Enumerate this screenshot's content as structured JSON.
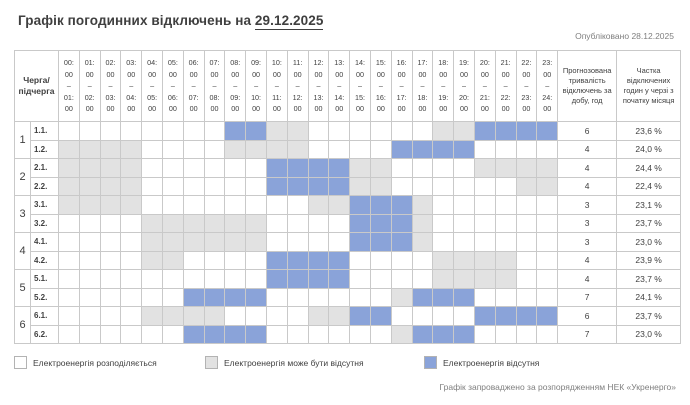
{
  "page": {
    "title_prefix": "Графік погодинних відключень на ",
    "title_date": "29.12.2025",
    "published": "Опубліковано 28.12.2025",
    "footer_note": "Графік запроваджено за розпорядженням НЕК «Укренерго»"
  },
  "colors": {
    "distributed": "#ffffff",
    "maybe_off": "#e2e2e2",
    "off": "#8aa3d9",
    "grid_line": "#c9c9c9",
    "outer_border": "#9e9e9e",
    "text_dark": "#404040",
    "text_muted": "#7f7f7f"
  },
  "table": {
    "corner_header": "Черга/\nпідчерга",
    "range_separator": "–",
    "hour_ticks": [
      "00:00",
      "01:00",
      "02:00",
      "03:00",
      "04:00",
      "05:00",
      "06:00",
      "07:00",
      "08:00",
      "09:00",
      "10:00",
      "11:00",
      "12:00",
      "13:00",
      "14:00",
      "15:00",
      "16:00",
      "17:00",
      "18:00",
      "19:00",
      "20:00",
      "21:00",
      "22:00",
      "23:00",
      "24:00"
    ],
    "duration_header": "Прогнозована тривалість відключень за добу, год",
    "share_header": "Частка відключених годин у черзі з початку місяця",
    "state_keys": {
      "W": "distributed",
      "G": "maybe_off",
      "B": "off"
    },
    "groups": [
      {
        "number": "1",
        "rows": [
          {
            "label": "1.1.",
            "pattern": "WWWWWWWWBBGGWWWWWWGGBBBB",
            "duration": "6",
            "share": "23,6 %"
          },
          {
            "label": "1.2.",
            "pattern": "GGGGWWWWGGGGWWWWBBBBWWWW",
            "duration": "4",
            "share": "24,0 %"
          }
        ]
      },
      {
        "number": "2",
        "rows": [
          {
            "label": "2.1.",
            "pattern": "GGGGWWWWWWBBBBGGWWWWGGGG",
            "duration": "4",
            "share": "24,4 %"
          },
          {
            "label": "2.2.",
            "pattern": "GGGGWWWWWWBBBBGGWWWWWWGG",
            "duration": "4",
            "share": "22,4 %"
          }
        ]
      },
      {
        "number": "3",
        "rows": [
          {
            "label": "3.1.",
            "pattern": "GGGGWWWWWWWWGGBBBGWWWWWW",
            "duration": "3",
            "share": "23,1 %"
          },
          {
            "label": "3.2.",
            "pattern": "WWWWGGGGGGWWWWBBBGWWWWWW",
            "duration": "3",
            "share": "23,7 %"
          }
        ]
      },
      {
        "number": "4",
        "rows": [
          {
            "label": "4.1.",
            "pattern": "WWWWGGGGGGWWWWBBBGWWWWWW",
            "duration": "3",
            "share": "23,0 %"
          },
          {
            "label": "4.2.",
            "pattern": "WWWWGGWWWWBBBBWWWWGGGGWW",
            "duration": "4",
            "share": "23,9 %"
          }
        ]
      },
      {
        "number": "5",
        "rows": [
          {
            "label": "5.1.",
            "pattern": "WWWWWWWWWWBBBBWWWWGGGGWW",
            "duration": "4",
            "share": "23,7 %"
          },
          {
            "label": "5.2.",
            "pattern": "WWWWWWBBBBWWWWWWGBBBWWWW",
            "duration": "7",
            "share": "24,1 %"
          }
        ]
      },
      {
        "number": "6",
        "rows": [
          {
            "label": "6.1.",
            "pattern": "WWWWGGGGWWWWGGBBWWWWBBBB",
            "duration": "6",
            "share": "23,7 %"
          },
          {
            "label": "6.2.",
            "pattern": "WWWWWWBBBBWWWWWWGBBBWWWW",
            "duration": "7",
            "share": "23,0 %"
          }
        ]
      }
    ]
  },
  "legend": [
    {
      "state": "W",
      "label": "Електроенергія розподіляється"
    },
    {
      "state": "G",
      "label": "Електроенергія може бути відсутня"
    },
    {
      "state": "B",
      "label": "Електроенергія відсутня"
    }
  ],
  "chart_data": {
    "type": "heatmap",
    "title": "Графік погодинних відключень на 29.12.2025",
    "published": "Опубліковано 28.12.2025",
    "x_categories": [
      "00:00–01:00",
      "01:00–02:00",
      "02:00–03:00",
      "03:00–04:00",
      "04:00–05:00",
      "05:00–06:00",
      "06:00–07:00",
      "07:00–08:00",
      "08:00–09:00",
      "09:00–10:00",
      "10:00–11:00",
      "11:00–12:00",
      "12:00–13:00",
      "13:00–14:00",
      "14:00–15:00",
      "15:00–16:00",
      "16:00–17:00",
      "17:00–18:00",
      "18:00–19:00",
      "19:00–20:00",
      "20:00–21:00",
      "21:00–22:00",
      "22:00–23:00",
      "23:00–24:00"
    ],
    "y_categories": [
      "1.1",
      "1.2",
      "2.1",
      "2.2",
      "3.1",
      "3.2",
      "4.1",
      "4.2",
      "5.1",
      "5.2",
      "6.1",
      "6.2"
    ],
    "state_legend": {
      "W": "Електроенергія розподіляється",
      "G": "Електроенергія може бути відсутня",
      "B": "Електроенергія відсутня"
    },
    "matrix": [
      "WWWWWWWWBBGGWWWWWWGGBBBB",
      "GGGGWWWWGGGGWWWWBBBBWWWW",
      "GGGGWWWWWWBBBBGGWWWWGGGG",
      "GGGGWWWWWWBBBBGGWWWWWWGG",
      "GGGGWWWWWWWWGGBBBGWWWWWW",
      "WWWWGGGGGGWWWWBBBGWWWWWW",
      "WWWWGGGGGGWWWWBBBGWWWWWW",
      "WWWWGGWWWWBBBBWWWWGGGGWW",
      "WWWWWWWWWWBBBBWWWWGGGGWW",
      "WWWWWWBBBBWWWWWWGBBBWWWW",
      "WWWWGGGGWWWWGGBBWWWWBBBB",
      "WWWWWWBBBBWWWWWWGBBBWWWW"
    ],
    "outage_duration_hours_per_day": [
      6,
      4,
      4,
      4,
      3,
      3,
      3,
      4,
      4,
      7,
      6,
      7
    ],
    "share_of_outage_hours_since_month_start": [
      "23,6 %",
      "24,0 %",
      "24,4 %",
      "22,4 %",
      "23,1 %",
      "23,7 %",
      "23,0 %",
      "23,9 %",
      "23,7 %",
      "24,1 %",
      "23,7 %",
      "23,0 %"
    ],
    "legend_position": "bottom",
    "grid": true
  }
}
